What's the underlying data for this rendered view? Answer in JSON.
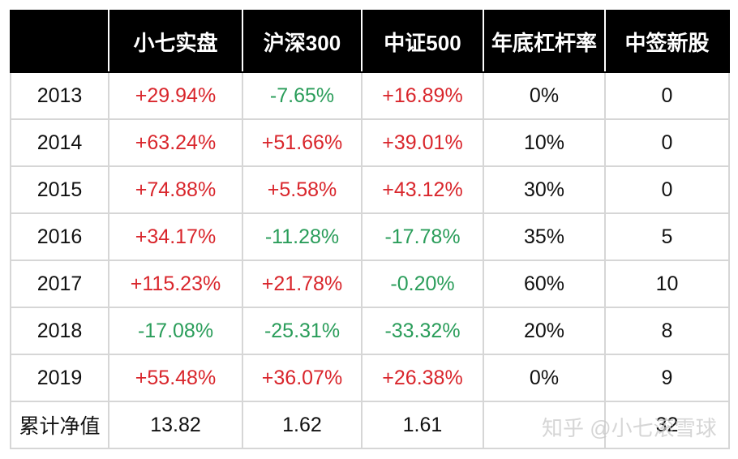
{
  "table": {
    "header": [
      "小七实盘",
      "沪深300",
      "中证500",
      "年底杠杆率",
      "中签新股"
    ],
    "rows": [
      [
        "2013",
        "+29.94%",
        "-7.65%",
        "+16.89%",
        "0%",
        "0"
      ],
      [
        "2014",
        "+63.24%",
        "+51.66%",
        "+39.01%",
        "10%",
        "0"
      ],
      [
        "2015",
        "+74.88%",
        "+5.58%",
        "+43.12%",
        "30%",
        "0"
      ],
      [
        "2016",
        "+34.17%",
        "-11.28%",
        "-17.78%",
        "35%",
        "5"
      ],
      [
        "2017",
        "+115.23%",
        "+21.78%",
        "-0.20%",
        "60%",
        "10"
      ],
      [
        "2018",
        "-17.08%",
        "-25.31%",
        "-33.32%",
        "20%",
        "8"
      ],
      [
        "2019",
        "+55.48%",
        "+36.07%",
        "+26.38%",
        "0%",
        "9"
      ],
      [
        "累计净值",
        "13.82",
        "1.62",
        "1.61",
        null,
        "32"
      ]
    ]
  },
  "watermark": "知乎 @小七滚雪球"
}
